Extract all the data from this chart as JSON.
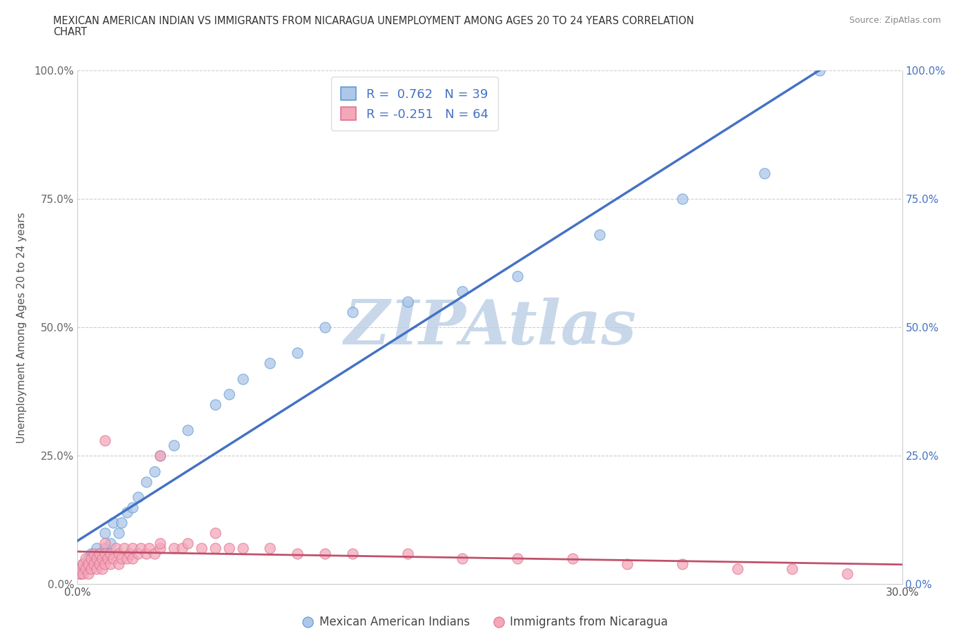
{
  "title_line1": "MEXICAN AMERICAN INDIAN VS IMMIGRANTS FROM NICARAGUA UNEMPLOYMENT AMONG AGES 20 TO 24 YEARS CORRELATION",
  "title_line2": "CHART",
  "source": "Source: ZipAtlas.com",
  "ylabel": "Unemployment Among Ages 20 to 24 years",
  "xmin": 0.0,
  "xmax": 0.3,
  "ymin": 0.0,
  "ymax": 1.0,
  "xticks": [
    0.0,
    0.05,
    0.1,
    0.15,
    0.2,
    0.25,
    0.3
  ],
  "xtick_labels": [
    "0.0%",
    "",
    "",
    "",
    "",
    "",
    "30.0%"
  ],
  "yticks": [
    0.0,
    0.25,
    0.5,
    0.75,
    1.0
  ],
  "ytick_labels_left": [
    "0.0%",
    "25.0%",
    "50.0%",
    "75.0%",
    "100.0%"
  ],
  "ytick_labels_right": [
    "0.0%",
    "25.0%",
    "50.0%",
    "75.0%",
    "100.0%"
  ],
  "blue_fill_color": "#aec6e8",
  "blue_edge_color": "#5b9bd5",
  "blue_line_color": "#4472c4",
  "pink_fill_color": "#f4a7b9",
  "pink_edge_color": "#e07090",
  "pink_line_color": "#c0506a",
  "r_blue": 0.762,
  "n_blue": 39,
  "r_pink": -0.251,
  "n_pink": 64,
  "watermark": "ZIPAtlas",
  "watermark_color": "#c8d8ea",
  "legend_label_blue": "Mexican American Indians",
  "legend_label_pink": "Immigrants from Nicaragua",
  "blue_scatter_x": [
    0.001,
    0.002,
    0.002,
    0.003,
    0.004,
    0.005,
    0.005,
    0.006,
    0.007,
    0.008,
    0.009,
    0.01,
    0.01,
    0.012,
    0.013,
    0.015,
    0.016,
    0.018,
    0.02,
    0.022,
    0.025,
    0.028,
    0.03,
    0.035,
    0.04,
    0.05,
    0.055,
    0.06,
    0.07,
    0.08,
    0.09,
    0.1,
    0.12,
    0.14,
    0.16,
    0.19,
    0.22,
    0.25,
    0.27
  ],
  "blue_scatter_y": [
    0.02,
    0.03,
    0.04,
    0.03,
    0.05,
    0.04,
    0.06,
    0.05,
    0.07,
    0.06,
    0.05,
    0.07,
    0.1,
    0.08,
    0.12,
    0.1,
    0.12,
    0.14,
    0.15,
    0.17,
    0.2,
    0.22,
    0.25,
    0.27,
    0.3,
    0.35,
    0.37,
    0.4,
    0.43,
    0.45,
    0.5,
    0.53,
    0.55,
    0.57,
    0.6,
    0.68,
    0.75,
    0.8,
    1.0
  ],
  "pink_scatter_x": [
    0.001,
    0.001,
    0.002,
    0.002,
    0.003,
    0.003,
    0.004,
    0.004,
    0.005,
    0.005,
    0.006,
    0.006,
    0.007,
    0.007,
    0.008,
    0.008,
    0.009,
    0.009,
    0.01,
    0.01,
    0.01,
    0.011,
    0.012,
    0.012,
    0.013,
    0.014,
    0.015,
    0.015,
    0.016,
    0.017,
    0.018,
    0.019,
    0.02,
    0.02,
    0.022,
    0.023,
    0.025,
    0.026,
    0.028,
    0.03,
    0.03,
    0.035,
    0.038,
    0.04,
    0.045,
    0.05,
    0.055,
    0.06,
    0.07,
    0.08,
    0.09,
    0.1,
    0.12,
    0.14,
    0.16,
    0.18,
    0.2,
    0.22,
    0.24,
    0.26,
    0.28,
    0.01,
    0.03,
    0.05
  ],
  "pink_scatter_y": [
    0.02,
    0.03,
    0.02,
    0.04,
    0.03,
    0.05,
    0.02,
    0.04,
    0.03,
    0.05,
    0.04,
    0.06,
    0.03,
    0.05,
    0.04,
    0.06,
    0.03,
    0.05,
    0.04,
    0.06,
    0.08,
    0.05,
    0.04,
    0.06,
    0.05,
    0.07,
    0.04,
    0.06,
    0.05,
    0.07,
    0.05,
    0.06,
    0.05,
    0.07,
    0.06,
    0.07,
    0.06,
    0.07,
    0.06,
    0.07,
    0.08,
    0.07,
    0.07,
    0.08,
    0.07,
    0.07,
    0.07,
    0.07,
    0.07,
    0.06,
    0.06,
    0.06,
    0.06,
    0.05,
    0.05,
    0.05,
    0.04,
    0.04,
    0.03,
    0.03,
    0.02,
    0.28,
    0.25,
    0.1
  ],
  "background_color": "#ffffff",
  "grid_color": "#cccccc",
  "left_ytick_color": "#666666",
  "right_ytick_color": "#4472c4"
}
